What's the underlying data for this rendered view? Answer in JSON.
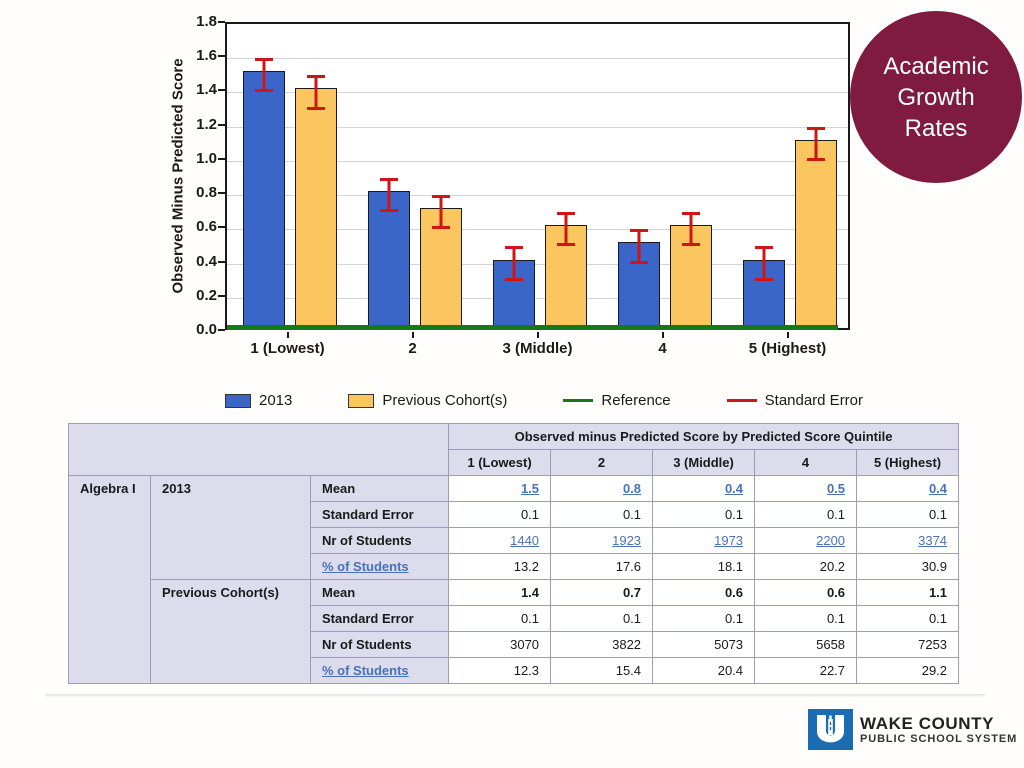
{
  "badge": {
    "lines": [
      "Academic",
      "Growth",
      "Rates"
    ],
    "bg_color": "#7E1B3E",
    "text_color": "#ffffff"
  },
  "chart_data": {
    "type": "bar",
    "title": "",
    "xlabel": "",
    "ylabel": "Observed Minus Predicted Score",
    "ylim": [
      0,
      1.8
    ],
    "ytick_step": 0.2,
    "grid": true,
    "legend_position": "bottom",
    "categories": [
      "1 (Lowest)",
      "2",
      "3 (Middle)",
      "4",
      "5 (Highest)"
    ],
    "series": [
      {
        "name": "2013",
        "color": "#3a66c9",
        "values": [
          1.5,
          0.8,
          0.4,
          0.5,
          0.4
        ],
        "std_errors": [
          0.1,
          0.1,
          0.1,
          0.1,
          0.1
        ]
      },
      {
        "name": "Previous Cohort(s)",
        "color": "#fbc55f",
        "values": [
          1.4,
          0.7,
          0.6,
          0.6,
          1.1
        ],
        "std_errors": [
          0.1,
          0.1,
          0.1,
          0.1,
          0.1
        ]
      }
    ],
    "reference": {
      "label": "Reference",
      "color": "#157a15",
      "y": 0
    },
    "error_legend": {
      "label": "Standard Error",
      "color": "#cf1616"
    }
  },
  "table": {
    "span_header": "Observed minus Predicted Score by Predicted Score Quintile",
    "col_headers": [
      "1 (Lowest)",
      "2",
      "3 (Middle)",
      "4",
      "5 (Highest)"
    ],
    "subject": "Algebra I",
    "groups": [
      {
        "name": "2013",
        "rows": [
          {
            "label": "Mean",
            "label_link": false,
            "value_style": "link-bold",
            "values": [
              "1.5",
              "0.8",
              "0.4",
              "0.5",
              "0.4"
            ]
          },
          {
            "label": "Standard Error",
            "label_link": false,
            "value_style": "plain",
            "values": [
              "0.1",
              "0.1",
              "0.1",
              "0.1",
              "0.1"
            ]
          },
          {
            "label": "Nr of Students",
            "label_link": false,
            "value_style": "link",
            "values": [
              "1440",
              "1923",
              "1973",
              "2200",
              "3374"
            ]
          },
          {
            "label": "% of Students",
            "label_link": true,
            "value_style": "plain",
            "values": [
              "13.2",
              "17.6",
              "18.1",
              "20.2",
              "30.9"
            ]
          }
        ]
      },
      {
        "name": "Previous Cohort(s)",
        "rows": [
          {
            "label": "Mean",
            "label_link": false,
            "value_style": "bold",
            "values": [
              "1.4",
              "0.7",
              "0.6",
              "0.6",
              "1.1"
            ]
          },
          {
            "label": "Standard Error",
            "label_link": false,
            "value_style": "plain",
            "values": [
              "0.1",
              "0.1",
              "0.1",
              "0.1",
              "0.1"
            ]
          },
          {
            "label": "Nr of Students",
            "label_link": false,
            "value_style": "plain",
            "values": [
              "3070",
              "3822",
              "5073",
              "5658",
              "7253"
            ]
          },
          {
            "label": "% of Students",
            "label_link": true,
            "value_style": "plain",
            "values": [
              "12.3",
              "15.4",
              "20.4",
              "22.7",
              "29.2"
            ]
          }
        ]
      }
    ]
  },
  "logo": {
    "name": "WAKE COUNTY",
    "subtitle": "PUBLIC SCHOOL SYSTEM",
    "square_color": "#1c6cb1"
  }
}
